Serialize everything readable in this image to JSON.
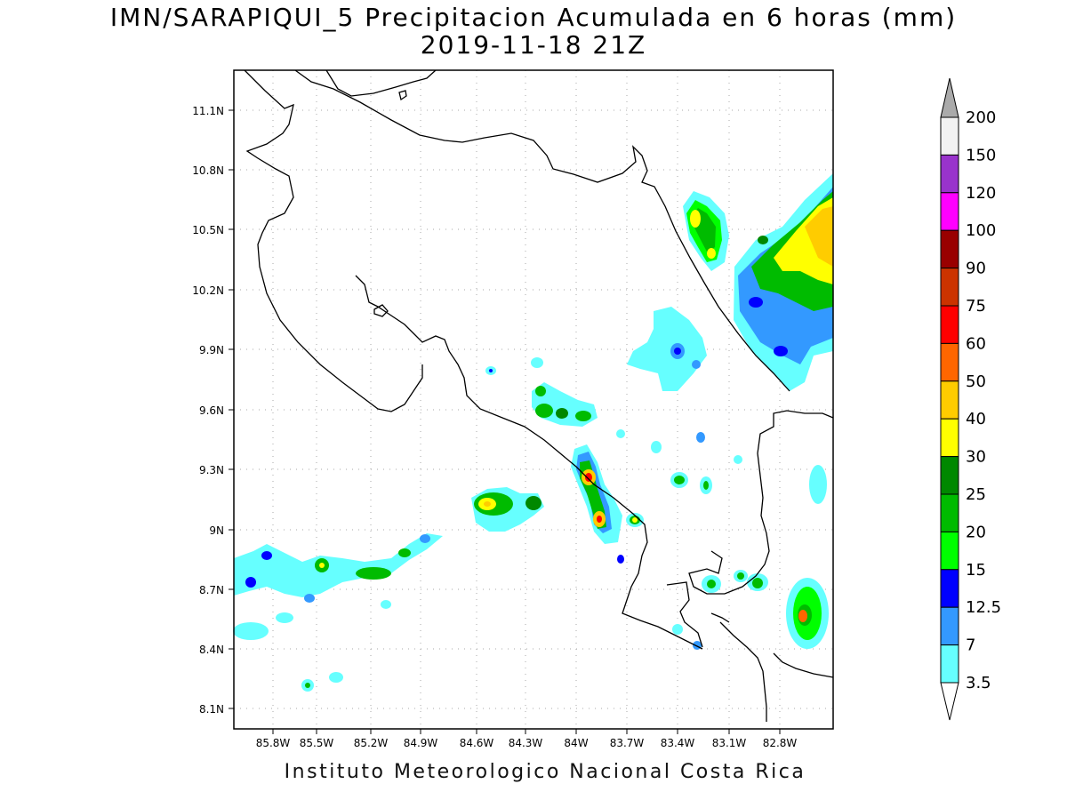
{
  "title": "IMN/SARAPIQUI_5 Precipitacion Acumulada en 6 horas (mm)",
  "subtitle": "2019-11-18 21Z",
  "footer": "Instituto Meteorologico Nacional Costa Rica",
  "map": {
    "lat_labels": [
      "11.1N",
      "10.8N",
      "10.5N",
      "10.2N",
      "9.9N",
      "9.6N",
      "9.3N",
      "9N",
      "8.7N",
      "8.4N",
      "8.1N"
    ],
    "lon_labels": [
      "85.8W",
      "85.5W",
      "85.2W",
      "84.9W",
      "84.6W",
      "84.3W",
      "84W",
      "83.7W",
      "83.4W",
      "83.1W",
      "82.8W"
    ],
    "grid": true
  },
  "legend": {
    "labels": [
      "200",
      "150",
      "120",
      "100",
      "90",
      "75",
      "60",
      "50",
      "40",
      "30",
      "25",
      "20",
      "15",
      "12.5",
      "7",
      "3.5"
    ],
    "colors": [
      "#f2f2f2",
      "#9933cc",
      "#ff00ff",
      "#990000",
      "#cc3300",
      "#ff0000",
      "#ff6600",
      "#ffcc00",
      "#ffff00",
      "#008800",
      "#00bb00",
      "#00ff00",
      "#0000ff",
      "#3399ff",
      "#66ffff"
    ],
    "overflow_color": "#aaaaaa"
  }
}
